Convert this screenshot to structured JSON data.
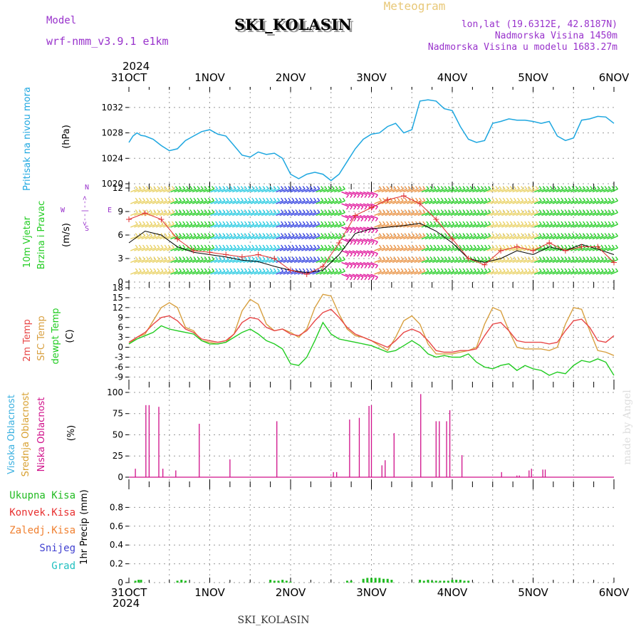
{
  "header": {
    "model_label": "Model",
    "model_name": "wrf-nmm_v3.9.1 e1km",
    "title": "SKI_KOLASIN",
    "subtitle": "Meteogram",
    "coords": "lon,lat (19.6312E, 42.8187N)",
    "elevation": "Nadmorska Visina 1450m",
    "model_elevation": "Nadmorska Visina u modelu 1683.27m",
    "year_top": "2024",
    "year_bottom": "2024",
    "footer": "SKI_KOLASIN",
    "watermark": "made by Angel"
  },
  "colors": {
    "pressure": "#1ea7e0",
    "wind_speed": "#000000",
    "gust": "#e03030",
    "temp_2m": "#e84848",
    "temp_sfc": "#d8a040",
    "dewpoint": "#22cc22",
    "cloud_high": "#3ab0e0",
    "cloud_mid": "#d8a030",
    "cloud_low": "#d0108a",
    "precip_total": "#22bb22",
    "precip_conv": "#e83030",
    "precip_frozen": "#f08030",
    "snow": "#4040d0",
    "hail": "#20c0c0",
    "wind_green": "#20cc20",
    "wind_yellow": "#e8d060",
    "wind_cyan": "#20c8e0",
    "wind_blue": "#3040e0",
    "wind_orange": "#e89040",
    "wind_magenta": "#e0109a",
    "compass": "#9933cc"
  },
  "chart_data": [
    {
      "type": "line",
      "panel": "pressure",
      "ylabel_1": "Pritisak na nivou mora",
      "ylabel_2": "(hPa)",
      "x_labels": [
        "31OCT",
        "1NOV",
        "2NOV",
        "3NOV",
        "4NOV",
        "5NOV",
        "6NOV"
      ],
      "ylim": [
        1020,
        1034
      ],
      "yticks": [
        1020,
        1024,
        1028,
        1032
      ],
      "series": [
        {
          "x": [
            0,
            0.05,
            0.1,
            0.15,
            0.2,
            0.3,
            0.4,
            0.5,
            0.6,
            0.7,
            0.8,
            0.9,
            1.0,
            1.1,
            1.2,
            1.3,
            1.4,
            1.5,
            1.6,
            1.7,
            1.8,
            1.9,
            2.0,
            2.1,
            2.2,
            2.3,
            2.4,
            2.5,
            2.6,
            2.7,
            2.8,
            2.9,
            3.0,
            3.1,
            3.2,
            3.3,
            3.4,
            3.5,
            3.6,
            3.7,
            3.8,
            3.9,
            4.0,
            4.1,
            4.2,
            4.3,
            4.4,
            4.5,
            4.6,
            4.7,
            4.8,
            4.9,
            5.0,
            5.1,
            5.2,
            5.3,
            5.4,
            5.5,
            5.6,
            5.7,
            5.8,
            5.9,
            6.0
          ],
          "y": [
            1026.5,
            1027.5,
            1028.0,
            1027.6,
            1027.5,
            1027.0,
            1026.0,
            1025.2,
            1025.5,
            1026.8,
            1027.5,
            1028.2,
            1028.5,
            1027.8,
            1027.5,
            1026.0,
            1024.5,
            1024.2,
            1025.0,
            1024.6,
            1024.8,
            1024.0,
            1021.5,
            1020.8,
            1021.5,
            1021.8,
            1021.5,
            1020.5,
            1021.5,
            1023.5,
            1025.5,
            1027.0,
            1027.8,
            1028.0,
            1029.0,
            1029.5,
            1028.0,
            1028.5,
            1033.0,
            1033.2,
            1033.0,
            1031.8,
            1031.5,
            1029.0,
            1027.0,
            1026.5,
            1026.8,
            1029.5,
            1029.8,
            1030.2,
            1030.0,
            1030.0,
            1029.8,
            1029.5,
            1029.8,
            1027.5,
            1026.8,
            1027.2,
            1030.0,
            1030.2,
            1030.6,
            1030.5,
            1029.5
          ]
        }
      ]
    },
    {
      "type": "line",
      "panel": "wind",
      "ylabel_1": "10m Vjetar",
      "ylabel_2": "Brzina i Pravac",
      "ylabel_3": "(m/s)",
      "compass": [
        "N",
        "S",
        "E",
        "W",
        "<--|-->"
      ],
      "ylim": [
        0,
        12
      ],
      "yticks": [
        0,
        3,
        6,
        9,
        12
      ],
      "barb_rows": [
        1,
        2.5,
        4,
        5.5,
        7,
        8.5,
        10,
        11.5
      ],
      "barb_color_bands": [
        {
          "from": 0.0,
          "to": 0.5,
          "color_key": "wind_yellow"
        },
        {
          "from": 0.5,
          "to": 1.0,
          "color_key": "wind_green"
        },
        {
          "from": 1.0,
          "to": 1.8,
          "color_key": "wind_cyan"
        },
        {
          "from": 1.8,
          "to": 2.3,
          "color_key": "wind_blue"
        },
        {
          "from": 2.3,
          "to": 2.6,
          "color_key": "wind_green"
        },
        {
          "from": 2.6,
          "to": 3.0,
          "color_key": "wind_magenta"
        },
        {
          "from": 3.0,
          "to": 3.6,
          "color_key": "wind_orange"
        },
        {
          "from": 3.6,
          "to": 4.4,
          "color_key": "wind_green"
        },
        {
          "from": 4.4,
          "to": 5.0,
          "color_key": "wind_yellow"
        },
        {
          "from": 5.0,
          "to": 6.0,
          "color_key": "wind_green"
        }
      ],
      "series": [
        {
          "name": "speed",
          "x": [
            0,
            0.2,
            0.4,
            0.6,
            0.8,
            1.0,
            1.2,
            1.4,
            1.6,
            1.8,
            2.0,
            2.2,
            2.4,
            2.6,
            2.8,
            3.0,
            3.2,
            3.4,
            3.6,
            3.8,
            4.0,
            4.2,
            4.4,
            4.6,
            4.8,
            5.0,
            5.2,
            5.4,
            5.6,
            5.8,
            6.0
          ],
          "y": [
            5.0,
            6.5,
            6.0,
            4.5,
            3.8,
            3.5,
            3.2,
            2.8,
            2.6,
            2.0,
            1.5,
            1.2,
            1.5,
            3.5,
            6.2,
            6.8,
            7.0,
            7.2,
            7.5,
            6.5,
            5.0,
            3.0,
            2.5,
            3.0,
            4.0,
            3.5,
            4.5,
            4.0,
            4.8,
            4.2,
            3.5
          ]
        },
        {
          "name": "gust",
          "x": [
            0,
            0.2,
            0.4,
            0.6,
            0.8,
            1.0,
            1.2,
            1.4,
            1.6,
            1.8,
            2.0,
            2.2,
            2.4,
            2.6,
            2.8,
            3.0,
            3.2,
            3.4,
            3.6,
            3.8,
            4.0,
            4.2,
            4.4,
            4.6,
            4.8,
            5.0,
            5.2,
            5.4,
            5.6,
            5.8,
            6.0
          ],
          "y": [
            8.0,
            8.8,
            8.0,
            5.5,
            4.0,
            3.8,
            3.5,
            3.2,
            3.5,
            3.0,
            1.5,
            1.0,
            2.0,
            5.0,
            8.5,
            9.5,
            10.5,
            11.0,
            10.0,
            8.0,
            5.5,
            3.0,
            2.2,
            4.0,
            4.5,
            4.0,
            5.0,
            4.0,
            4.5,
            4.5,
            2.5
          ]
        }
      ]
    },
    {
      "type": "line",
      "panel": "temperature",
      "ylabel_1": "2m Temp",
      "ylabel_2": "SFC Temp",
      "ylabel_3": "dewpt Temp",
      "ylabel_4": "(C)",
      "ylim": [
        -10,
        18
      ],
      "yticks": [
        -9,
        -6,
        -3,
        0,
        3,
        6,
        9,
        12,
        15,
        18
      ],
      "series": [
        {
          "name": "2m Temp",
          "x": [
            0,
            0.1,
            0.2,
            0.3,
            0.4,
            0.5,
            0.6,
            0.7,
            0.8,
            0.9,
            1.0,
            1.1,
            1.2,
            1.3,
            1.4,
            1.5,
            1.6,
            1.7,
            1.8,
            1.9,
            2.0,
            2.1,
            2.2,
            2.3,
            2.4,
            2.5,
            2.6,
            2.7,
            2.8,
            2.9,
            3.0,
            3.1,
            3.2,
            3.3,
            3.4,
            3.5,
            3.6,
            3.7,
            3.8,
            3.9,
            4.0,
            4.1,
            4.2,
            4.3,
            4.4,
            4.5,
            4.6,
            4.7,
            4.8,
            4.9,
            5.0,
            5.1,
            5.2,
            5.3,
            5.4,
            5.5,
            5.6,
            5.7,
            5.8,
            5.9,
            6.0
          ],
          "y": [
            1.5,
            3.0,
            4.5,
            7.0,
            9.0,
            9.5,
            8.0,
            5.5,
            4.5,
            2.5,
            2.0,
            1.5,
            2.0,
            4.0,
            7.5,
            9.0,
            8.5,
            6.0,
            5.0,
            5.5,
            4.0,
            3.5,
            5.0,
            8.0,
            10.5,
            11.5,
            9.0,
            6.0,
            4.0,
            3.0,
            2.0,
            1.0,
            0.0,
            2.0,
            4.5,
            5.5,
            4.5,
            2.0,
            -1.0,
            -1.5,
            -1.5,
            -1.0,
            -1.0,
            -0.5,
            3.5,
            7.0,
            7.5,
            5.0,
            2.0,
            1.5,
            1.5,
            1.5,
            1.0,
            1.5,
            5.0,
            8.0,
            8.5,
            6.0,
            2.0,
            1.5,
            3.5
          ]
        },
        {
          "name": "SFC Temp",
          "x": [
            0,
            0.1,
            0.2,
            0.3,
            0.4,
            0.5,
            0.6,
            0.7,
            0.8,
            0.9,
            1.0,
            1.1,
            1.2,
            1.3,
            1.4,
            1.5,
            1.6,
            1.7,
            1.8,
            1.9,
            2.0,
            2.1,
            2.2,
            2.3,
            2.4,
            2.5,
            2.6,
            2.7,
            2.8,
            2.9,
            3.0,
            3.1,
            3.2,
            3.3,
            3.4,
            3.5,
            3.6,
            3.7,
            3.8,
            3.9,
            4.0,
            4.1,
            4.2,
            4.3,
            4.4,
            4.5,
            4.6,
            4.7,
            4.8,
            4.9,
            5.0,
            5.1,
            5.2,
            5.3,
            5.4,
            5.5,
            5.6,
            5.7,
            5.8,
            5.9,
            6.0
          ],
          "y": [
            1.0,
            3.0,
            4.0,
            8.0,
            12.0,
            13.5,
            12.0,
            6.0,
            5.0,
            2.0,
            1.5,
            1.0,
            1.5,
            4.0,
            11.0,
            14.5,
            13.0,
            7.0,
            5.0,
            5.5,
            4.5,
            3.0,
            5.5,
            12.0,
            16.0,
            15.5,
            10.0,
            5.5,
            3.5,
            3.0,
            2.0,
            0.5,
            -1.0,
            3.0,
            8.0,
            9.5,
            7.0,
            1.0,
            -2.0,
            -2.0,
            -2.0,
            -1.5,
            -1.0,
            0.0,
            7.0,
            12.0,
            11.0,
            5.0,
            0.0,
            -0.5,
            -0.5,
            -0.5,
            -1.0,
            0.0,
            7.0,
            12.0,
            11.5,
            5.0,
            -1.0,
            -1.5,
            -2.5
          ]
        },
        {
          "name": "dewpt Temp",
          "x": [
            0,
            0.1,
            0.2,
            0.3,
            0.4,
            0.5,
            0.6,
            0.7,
            0.8,
            0.9,
            1.0,
            1.1,
            1.2,
            1.3,
            1.4,
            1.5,
            1.6,
            1.7,
            1.8,
            1.9,
            2.0,
            2.1,
            2.2,
            2.3,
            2.4,
            2.5,
            2.6,
            2.7,
            2.8,
            2.9,
            3.0,
            3.1,
            3.2,
            3.3,
            3.4,
            3.5,
            3.6,
            3.7,
            3.8,
            3.9,
            4.0,
            4.1,
            4.2,
            4.3,
            4.4,
            4.5,
            4.6,
            4.7,
            4.8,
            4.9,
            5.0,
            5.1,
            5.2,
            5.3,
            5.4,
            5.5,
            5.6,
            5.7,
            5.8,
            5.9,
            6.0
          ],
          "y": [
            1.0,
            2.5,
            3.5,
            4.5,
            6.5,
            5.5,
            5.0,
            4.5,
            4.0,
            2.0,
            1.0,
            1.0,
            1.5,
            3.0,
            4.5,
            5.5,
            4.0,
            2.0,
            1.0,
            -0.5,
            -5.0,
            -5.5,
            -3.0,
            2.0,
            7.5,
            4.0,
            2.5,
            2.0,
            1.5,
            1.0,
            0.5,
            -0.5,
            -1.5,
            -1.0,
            0.5,
            2.0,
            0.5,
            -2.0,
            -3.0,
            -2.5,
            -3.0,
            -3.0,
            -2.0,
            -4.5,
            -6.0,
            -6.5,
            -5.5,
            -5.0,
            -7.0,
            -5.5,
            -6.5,
            -7.0,
            -8.5,
            -7.5,
            -8.0,
            -5.5,
            -4.0,
            -4.5,
            -3.5,
            -4.5,
            -8.5
          ]
        }
      ]
    },
    {
      "type": "bar",
      "panel": "cloud",
      "ylabel_1": "Visoka Oblacnost",
      "ylabel_2": "Srednja Oblacnost",
      "ylabel_3": "Niska Oblacnost",
      "ylabel_4": "(%)",
      "ylim": [
        0,
        105
      ],
      "yticks": [
        0,
        25,
        50,
        75,
        100
      ],
      "series": [
        {
          "name": "Niska Oblacnost",
          "x": [
            0.08,
            0.21,
            0.25,
            0.37,
            0.42,
            0.58,
            0.87,
            1.25,
            1.83,
            2.53,
            2.57,
            2.73,
            2.85,
            2.97,
            3.0,
            3.13,
            3.17,
            3.28,
            3.61,
            3.8,
            3.84,
            3.93,
            3.97,
            4.12,
            4.61,
            4.8,
            4.83,
            4.95,
            4.98,
            5.12,
            5.15
          ],
          "y": [
            10,
            85,
            85,
            83,
            10,
            8,
            63,
            21,
            66,
            6,
            6,
            68,
            70,
            84,
            85,
            14,
            20,
            52,
            98,
            66,
            66,
            66,
            79,
            26,
            6,
            2,
            2,
            8,
            10,
            9,
            9
          ]
        }
      ]
    },
    {
      "type": "bar",
      "panel": "precip",
      "ylabel_1": "1hr Precip",
      "ylabel_2": "(mm)",
      "legend": [
        "Ukupna Kisa",
        "Konvek.Kisa",
        "Zaledj.Kisa",
        "Snijeg",
        "Grad"
      ],
      "ylim": [
        0,
        1
      ],
      "yticks": [
        0,
        0.2,
        0.4,
        0.6,
        0.8
      ],
      "series": [
        {
          "name": "Ukupna Kisa",
          "x": [
            0.08,
            0.12,
            0.15,
            0.6,
            0.65,
            0.7,
            1.75,
            1.8,
            1.85,
            1.9,
            1.95,
            2.0,
            2.7,
            2.75,
            2.9,
            2.95,
            3.0,
            3.05,
            3.1,
            3.15,
            3.2,
            3.25,
            3.6,
            3.65,
            3.7,
            3.75,
            3.8,
            3.85,
            3.9,
            3.95,
            4.0,
            4.05,
            4.1,
            4.15,
            4.2
          ],
          "y": [
            0.02,
            0.03,
            0.03,
            0.02,
            0.03,
            0.02,
            0.03,
            0.02,
            0.02,
            0.03,
            0.02,
            0.01,
            0.02,
            0.02,
            0.04,
            0.05,
            0.05,
            0.05,
            0.05,
            0.04,
            0.04,
            0.03,
            0.03,
            0.02,
            0.03,
            0.02,
            0.02,
            0.02,
            0.02,
            0.02,
            0.03,
            0.03,
            0.03,
            0.02,
            0.02
          ]
        }
      ]
    }
  ]
}
